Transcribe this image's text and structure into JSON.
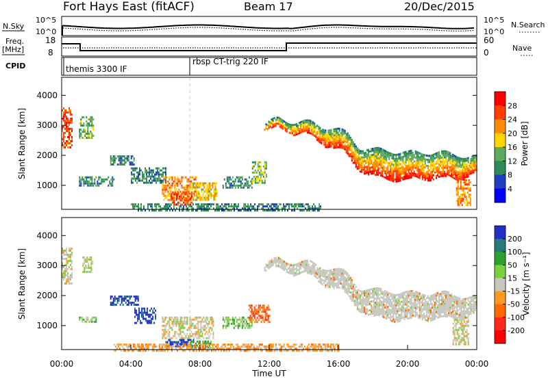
{
  "header": {
    "title": "Fort Hays East (fitACF)",
    "beam": "Beam 17",
    "date": "20/Dec/2015"
  },
  "noise_panel": {
    "left_label": "N.Sky",
    "left_ticks": [
      "10^5",
      "10^0"
    ],
    "right_ticks": [
      "10^5",
      "10^0"
    ],
    "right_label": "N.Search"
  },
  "freq_panel": {
    "left_label_top": "Freq.",
    "left_label_bottom": "[MHz]",
    "left_ticks": [
      "18",
      "8"
    ],
    "right_ticks": [
      "60",
      "0"
    ],
    "right_label": "Nave"
  },
  "cpid_panel": {
    "label": "CPID",
    "segments": [
      {
        "name": "themis 3300 IF",
        "start_hour": 0
      },
      {
        "name": "rbsp CT-trig 220 IF",
        "start_hour": 7.5
      }
    ]
  },
  "colors": {
    "power": [
      "#0000ff",
      "#2040c0",
      "#2e8b57",
      "#5faa5f",
      "#ffd700",
      "#ff8c00",
      "#ff4000",
      "#ff0000"
    ],
    "velocity": [
      "#1e30c8",
      "#287a78",
      "#2ea02e",
      "#7dd03c",
      "#c8c8c0",
      "#ff9a20",
      "#ff6a00",
      "#ff2a1a",
      "#ff0000"
    ]
  },
  "chart_data": [
    {
      "type": "heatmap",
      "name": "power",
      "ylabel": "Slant Range [km]",
      "y_ticks": [
        "1000",
        "2000",
        "3000",
        "4000"
      ],
      "ylim": [
        200,
        4600
      ],
      "xlim": [
        0,
        24
      ],
      "colorbar": {
        "label": "Power [dB]",
        "tick_labels": [
          "4",
          "8",
          "12",
          "16",
          "20",
          "24",
          "28"
        ]
      },
      "regions": [
        {
          "t0": 0.0,
          "t1": 0.6,
          "r0": 2300,
          "r1": 3600,
          "level": 6
        },
        {
          "t0": 1.0,
          "t1": 1.8,
          "r0": 2600,
          "r1": 3300,
          "level": 3
        },
        {
          "t0": 1.0,
          "t1": 3.0,
          "r0": 1000,
          "r1": 1300,
          "level": 2
        },
        {
          "t0": 2.8,
          "t1": 4.2,
          "r0": 1700,
          "r1": 2000,
          "level": 2
        },
        {
          "t0": 4.0,
          "t1": 6.0,
          "r0": 1100,
          "r1": 1600,
          "level": 2
        },
        {
          "t0": 5.8,
          "t1": 7.8,
          "r0": 500,
          "r1": 1300,
          "level": 5
        },
        {
          "t0": 6.3,
          "t1": 7.5,
          "r0": 350,
          "r1": 800,
          "level": 6
        },
        {
          "t0": 7.5,
          "t1": 9.0,
          "r0": 500,
          "r1": 1100,
          "level": 4
        },
        {
          "t0": 9.3,
          "t1": 11.0,
          "r0": 900,
          "r1": 1300,
          "level": 2
        },
        {
          "t0": 11.0,
          "t1": 11.8,
          "r0": 1100,
          "r1": 1800,
          "level": 3
        },
        {
          "t0": 4.0,
          "t1": 15.0,
          "r0": 150,
          "r1": 400,
          "level": 2
        },
        {
          "t0": 22.8,
          "t1": 23.6,
          "r0": 350,
          "r1": 1200,
          "level": 5
        }
      ],
      "band": {
        "t": [
          11.7,
          12.5,
          13.5,
          14.5,
          15.5,
          16.5,
          17.2,
          18.0,
          19.0,
          20.0,
          21.0,
          22.0,
          23.0,
          24.0
        ],
        "top": [
          3050,
          3200,
          3150,
          3050,
          2950,
          2700,
          2300,
          2150,
          2200,
          2050,
          2150,
          2050,
          2050,
          1900
        ],
        "bottom": [
          2800,
          2900,
          2800,
          2600,
          2350,
          2000,
          1600,
          1250,
          1300,
          1150,
          1300,
          1200,
          1300,
          1400
        ]
      }
    },
    {
      "type": "heatmap",
      "name": "velocity",
      "ylabel": "Slant Range [km]",
      "y_ticks": [
        "1000",
        "2000",
        "3000",
        "4000"
      ],
      "ylim": [
        200,
        4600
      ],
      "xlim": [
        0,
        24
      ],
      "x_ticks": [
        "00:00",
        "04:00",
        "08:00",
        "12:00",
        "16:00",
        "20:00",
        "00:00"
      ],
      "xlabel": "Time UT",
      "colorbar": {
        "label": "Velocity [m s⁻¹]",
        "tick_labels": [
          "200",
          "100",
          "50",
          "15",
          "-15",
          "-50",
          "-100",
          "-200"
        ]
      },
      "regions": [
        {
          "t0": 0.0,
          "t1": 0.6,
          "r0": 2400,
          "r1": 3600,
          "level": 4
        },
        {
          "t0": 1.0,
          "t1": 2.0,
          "r0": 1100,
          "r1": 1300,
          "level": 3
        },
        {
          "t0": 1.2,
          "t1": 1.8,
          "r0": 2800,
          "r1": 3300,
          "level": 4
        },
        {
          "t0": 2.8,
          "t1": 4.4,
          "r0": 1700,
          "r1": 2000,
          "level": 0
        },
        {
          "t0": 4.2,
          "t1": 5.4,
          "r0": 1100,
          "r1": 1600,
          "level": 0
        },
        {
          "t0": 5.8,
          "t1": 8.8,
          "r0": 600,
          "r1": 1300,
          "level": 4
        },
        {
          "t0": 6.0,
          "t1": 7.6,
          "r0": 300,
          "r1": 550,
          "level": 0
        },
        {
          "t0": 7.4,
          "t1": 8.6,
          "r0": 250,
          "r1": 500,
          "level": 2
        },
        {
          "t0": 9.3,
          "t1": 11.0,
          "r0": 900,
          "r1": 1300,
          "level": 3
        },
        {
          "t0": 10.8,
          "t1": 12.0,
          "r0": 1100,
          "r1": 1700,
          "level": 6
        },
        {
          "t0": 3.0,
          "t1": 16.0,
          "r0": 150,
          "r1": 400,
          "level": 5
        },
        {
          "t0": 22.6,
          "t1": 23.5,
          "r0": 400,
          "r1": 1300,
          "level": 4
        }
      ],
      "band": {
        "t": [
          11.7,
          12.5,
          13.5,
          14.5,
          15.5,
          16.5,
          17.2,
          18.0,
          19.0,
          20.0,
          21.0,
          22.0,
          23.0,
          24.0
        ],
        "top": [
          3050,
          3200,
          3150,
          3050,
          2950,
          2700,
          2300,
          2150,
          2200,
          2050,
          2150,
          2050,
          2050,
          1900
        ],
        "bottom": [
          2800,
          2900,
          2800,
          2600,
          2350,
          2000,
          1600,
          1250,
          1300,
          1150,
          1300,
          1200,
          1300,
          1400
        ],
        "level": 4
      }
    }
  ]
}
